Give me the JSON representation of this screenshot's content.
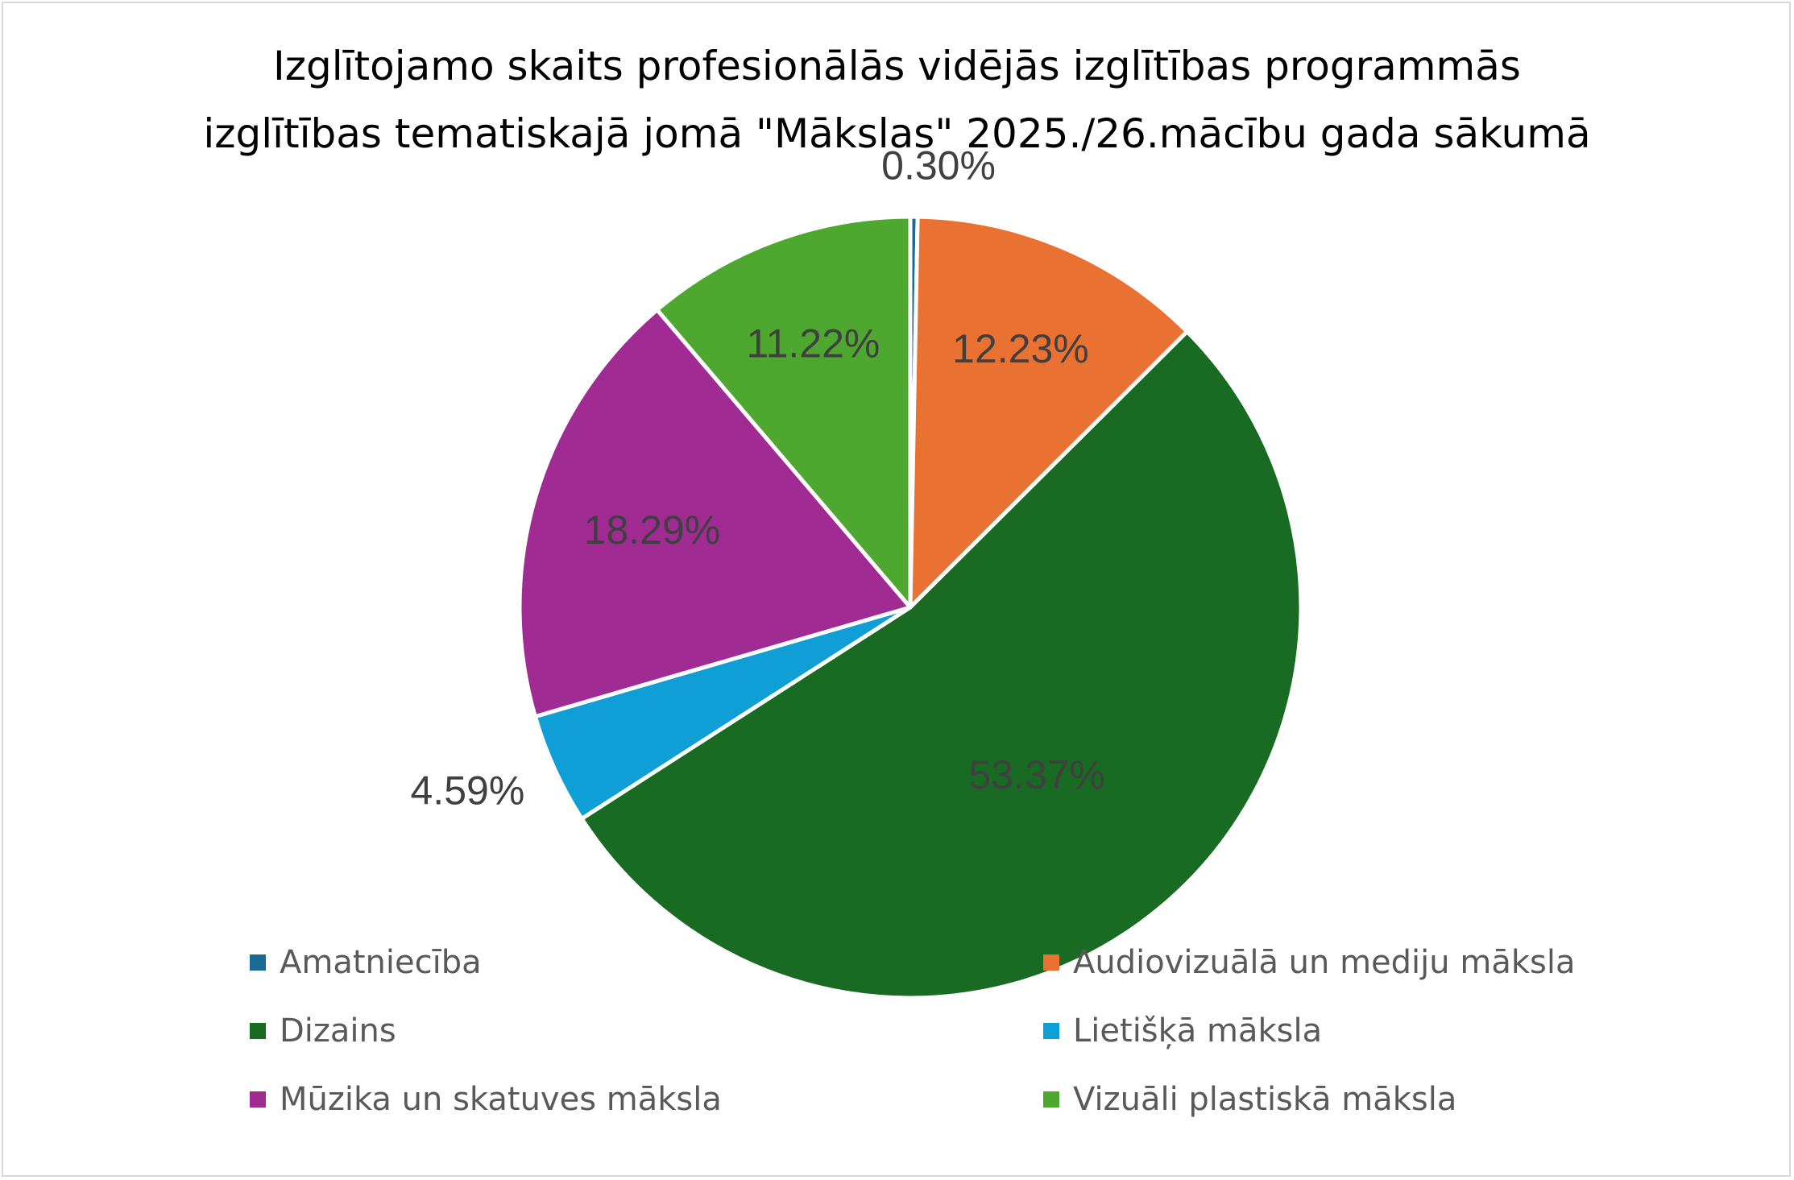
{
  "chart_data": {
    "type": "pie",
    "title": "Izglītojamo skaits profesionālās vidējās izglītības programmās izglītības tematiskajā jomā \"Mākslas\" 2025./26.mācību gada sākumā",
    "title_lines": [
      "Izglītojamo skaits profesionālās vidējās izglītības programmās",
      "izglītības tematiskajā jomā \"Mākslas\" 2025./26.mācību gada sākumā"
    ],
    "categories": [
      "Amatniecība",
      "Audiovizuālā un mediju māksla",
      "Dizains",
      "Lietišķā māksla",
      "Mūzika un skatuves māksla",
      "Vizuāli plastiskā māksla"
    ],
    "values": [
      0.3,
      12.23,
      53.37,
      4.59,
      18.29,
      11.22
    ],
    "data_labels": [
      "0.30%",
      "12.23%",
      "53.37%",
      "4.59%",
      "18.29%",
      "11.22%"
    ],
    "colors": [
      "#1b6a93",
      "#e97132",
      "#196b24",
      "#0f9ed5",
      "#a02b93",
      "#4ea72e"
    ],
    "start_angle_degrees": 0,
    "direction": "clockwise",
    "legend_position": "bottom"
  }
}
